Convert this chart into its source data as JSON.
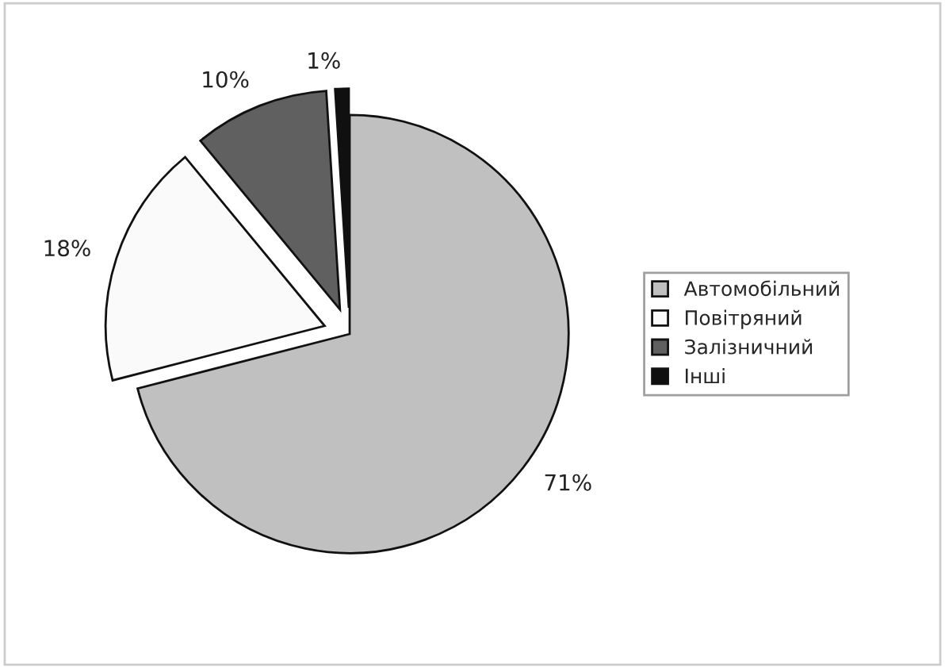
{
  "chart_data": {
    "type": "pie",
    "categories": [
      "Автомобільний",
      "Повітряний",
      "Залізничний",
      "Інші"
    ],
    "values": [
      71,
      18,
      10,
      1
    ],
    "colors": [
      "#c0c0c0",
      "#fafafa",
      "#606060",
      "#101010"
    ],
    "value_labels": [
      "71%",
      "18%",
      "10%",
      "1%"
    ],
    "legend": "right"
  }
}
